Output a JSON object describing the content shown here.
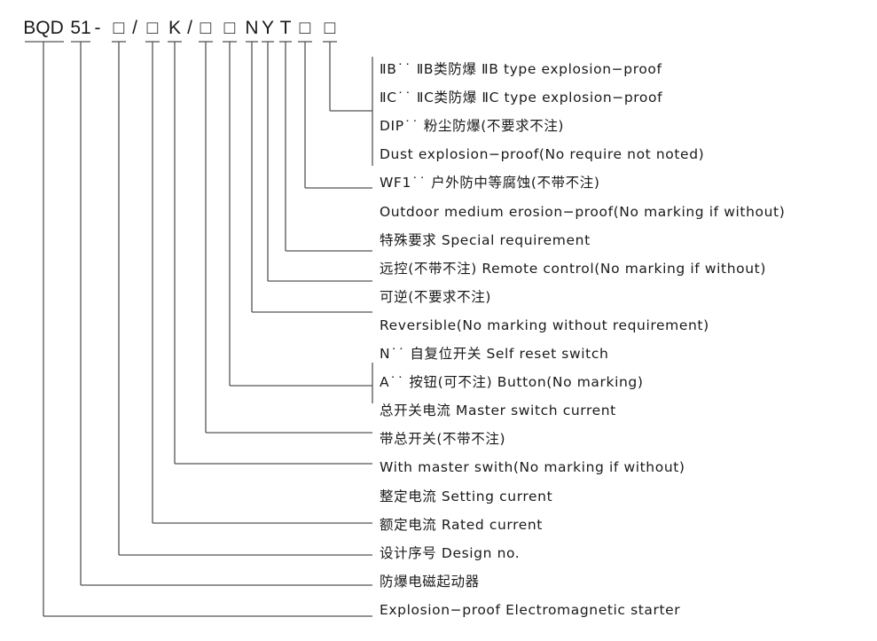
{
  "model_code": {
    "segments": [
      "BQD",
      "51",
      "-",
      "□",
      "/",
      "□",
      "K",
      "/",
      "□",
      "□",
      "N",
      "Y",
      "T",
      "□",
      "□"
    ]
  },
  "descriptions": [
    "ⅡB˙˙ ⅡB类防爆 ⅡB type explosion−proof",
    "ⅡC˙˙ ⅡC类防爆 ⅡC type explosion−proof",
    "DIP˙˙ 粉尘防爆(不要求不注)",
    "Dust explosion−proof(No require not noted)",
    "WF1˙˙ 户外防中等腐蚀(不带不注)",
    "Outdoor medium erosion−proof(No marking if without)",
    "特殊要求 Special requirement",
    "远控(不带不注) Remote control(No marking if without)",
    "可逆(不要求不注)",
    "Reversible(No marking without requirement)",
    "N˙˙ 自复位开关 Self reset switch",
    "A˙˙ 按钮(可不注) Button(No marking)",
    "总开关电流 Master switch current",
    "带总开关(不带不注)",
    "With master swith(No marking if without)",
    "整定电流 Setting current",
    "额定电流 Rated current",
    "设计序号 Design no.",
    "防爆电磁起动器",
    "Explosion−proof Electromagnetic starter"
  ],
  "line_color": "#555555"
}
